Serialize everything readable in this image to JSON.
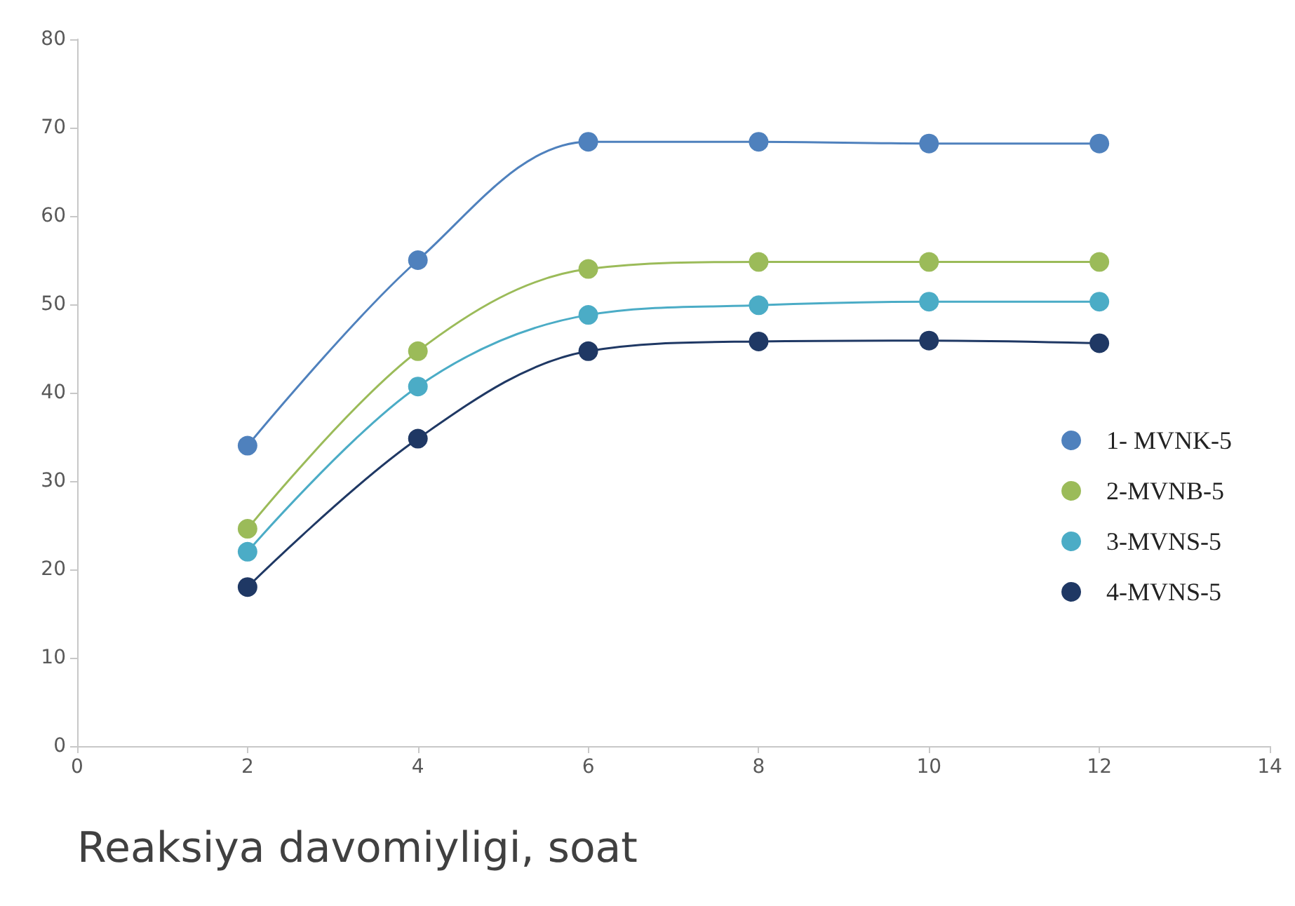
{
  "chart_data": {
    "type": "line",
    "xlabel": "Reaksiya davomiyligi, soat",
    "x": [
      2,
      4,
      6,
      8,
      10,
      12
    ],
    "series": [
      {
        "name": "1- MVNK-5",
        "color": "#4f81bd",
        "values": [
          34,
          55,
          68.4,
          68.4,
          68.2,
          68.2
        ]
      },
      {
        "name": "2-MVNB-5",
        "color": "#9bbb59",
        "values": [
          24.6,
          44.7,
          54,
          54.8,
          54.8,
          54.8
        ]
      },
      {
        "name": "3-MVNS-5",
        "color": "#4bacc6",
        "values": [
          22,
          40.7,
          48.8,
          49.9,
          50.3,
          50.3
        ]
      },
      {
        "name": "4-MVNS-5",
        "color": "#1f3864",
        "values": [
          18,
          34.8,
          44.7,
          45.8,
          45.9,
          45.6
        ]
      }
    ],
    "xlim": [
      0,
      14
    ],
    "xticks": [
      0,
      2,
      4,
      6,
      8,
      10,
      12,
      14
    ],
    "ylim": [
      0,
      80
    ],
    "yticks": [
      0,
      10,
      20,
      30,
      40,
      50,
      60,
      70,
      80
    ],
    "grid": false,
    "legend": "right",
    "marker": "circle",
    "line_style": "solid"
  }
}
